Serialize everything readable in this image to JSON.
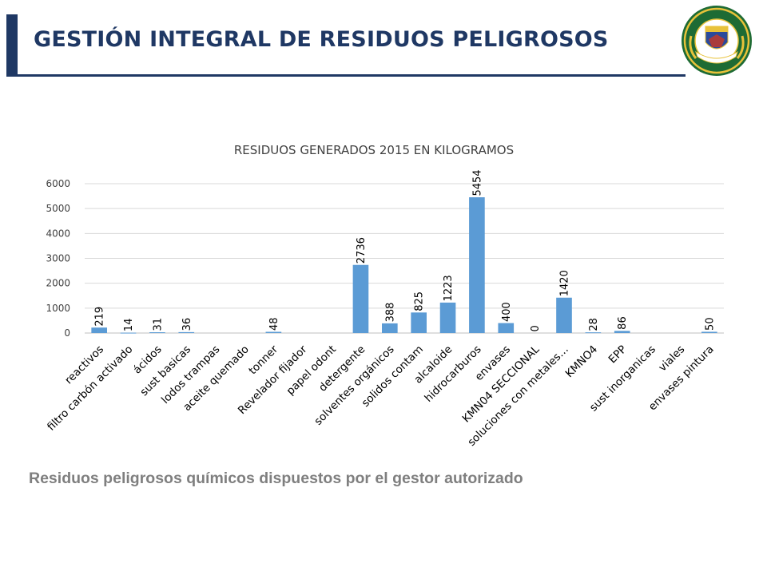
{
  "header": {
    "title": "GESTIÓN INTEGRAL DE RESIDUOS PELIGROSOS",
    "emblem_ring_top": "REPUBLICA DE COLOMBIA",
    "emblem_ring_bottom": "POLICIA NACIONAL",
    "emblem_motto": "DIOS Y PATRIA",
    "colors": {
      "title": "#1f3864",
      "bar": "#1f3864"
    }
  },
  "caption": "Residuos peligrosos químicos dispuestos por el gestor autorizado",
  "chart_data": {
    "type": "bar",
    "title": "RESIDUOS GENERADOS 2015 EN KILOGRAMOS",
    "xlabel": "",
    "ylabel": "",
    "ylim": [
      0,
      6000
    ],
    "yticks": [
      0,
      1000,
      2000,
      3000,
      4000,
      5000,
      6000
    ],
    "grid": true,
    "legend": "none",
    "bar_color": "#5b9bd5",
    "categories": [
      "reactivos",
      "filtro carbón activado",
      "ácidos",
      "sust basicas",
      "lodos trampas",
      "aceite quemado",
      "tonner",
      "Revelador fijador",
      "papel odont",
      "detergente",
      "solventes orgánicos",
      "solidos contam",
      "alcaloide",
      "hidrocarburos",
      "envases",
      "KMN04 SECCIONAL",
      "soluciones con metales…",
      "KMNO4",
      "EPP",
      "sust inorganicas",
      "viales",
      "envases pintura"
    ],
    "values": [
      219,
      14,
      31,
      36,
      null,
      null,
      48,
      null,
      null,
      2736,
      388,
      825,
      1223,
      5454,
      400,
      0,
      1420,
      28,
      86,
      null,
      null,
      50
    ],
    "data_labels": [
      "219",
      "14",
      "31",
      "36",
      "",
      "",
      "48",
      "",
      "",
      "2736",
      "388",
      "825",
      "1223",
      "5454",
      "400",
      "0",
      "1420",
      "28",
      "86",
      "",
      "",
      "50"
    ]
  }
}
